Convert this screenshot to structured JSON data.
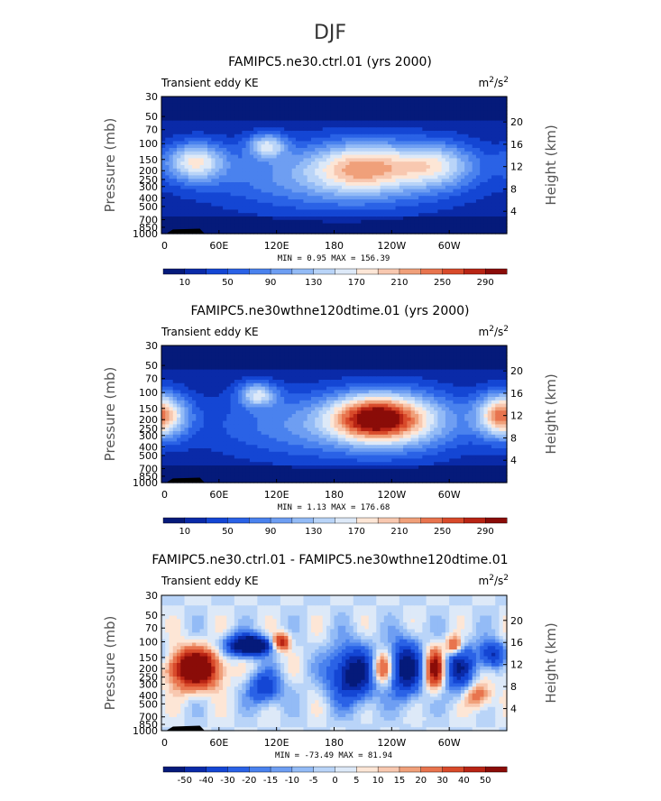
{
  "figure": {
    "title": "DJF"
  },
  "colors": {
    "blue_scale": [
      "#051a7a",
      "#0a2aa8",
      "#1446d4",
      "#2a62e6",
      "#4a82ee",
      "#6e9ef2",
      "#93bbf6",
      "#b9d4f8",
      "#dde9f8",
      "#fde6d6",
      "#f8c8b0",
      "#f0a07a",
      "#e8744e",
      "#d84a2a",
      "#b82414",
      "#8a0c08"
    ],
    "diff_scale": [
      "#051a7a",
      "#0a2aa8",
      "#1446d4",
      "#2a62e6",
      "#4a82ee",
      "#6e9ef2",
      "#93bbf6",
      "#b9d4f8",
      "#dde9f8",
      "#fde6d6",
      "#f8c8b0",
      "#f0a07a",
      "#e8744e",
      "#d84a2a",
      "#b82414",
      "#8a0c08"
    ]
  },
  "chart_data": [
    {
      "type": "heatmap",
      "title": "FAMIPC5.ne30.ctrl.01 (yrs 2000)",
      "left_label": "Transient eddy KE",
      "units_base": "m",
      "units_exp": "2",
      "units_den": "/s",
      "units_den_exp": "2",
      "ylabel": "Pressure (mb)",
      "ylabel_right": "Height (km)",
      "pressure_ticks": [
        "30",
        "50",
        "70",
        "100",
        "150",
        "200",
        "250",
        "300",
        "400",
        "500",
        "700",
        "850",
        "1000"
      ],
      "pressure_values": [
        30,
        50,
        70,
        100,
        150,
        200,
        250,
        300,
        400,
        500,
        700,
        850,
        1000
      ],
      "height_ticks": [
        "20",
        "16",
        "12",
        "8",
        "4"
      ],
      "height_values": [
        20,
        16,
        12,
        8,
        4
      ],
      "x_ticks": [
        "0",
        "60E",
        "120E",
        "180",
        "120W",
        "60W"
      ],
      "x_values": [
        0,
        60,
        120,
        180,
        240,
        300
      ],
      "xlim": [
        0,
        360
      ],
      "min_max": "MIN =    0.95  MAX =  156.39",
      "colorbar_labels": [
        "10",
        "50",
        "90",
        "130",
        "170",
        "210",
        "250",
        "290"
      ],
      "levels": [
        0,
        10,
        30,
        50,
        70,
        90,
        110,
        130,
        150,
        170,
        190,
        210,
        230,
        250,
        270,
        290
      ],
      "features": [
        {
          "lon": 35,
          "p": 160,
          "amp": 145,
          "wlon": 22,
          "wp": 0.35
        },
        {
          "lon": 110,
          "p": 105,
          "amp": 120,
          "wlon": 14,
          "wp": 0.22
        },
        {
          "lon": 210,
          "p": 180,
          "amp": 120,
          "wlon": 35,
          "wp": 0.45
        },
        {
          "lon": 285,
          "p": 170,
          "amp": 110,
          "wlon": 30,
          "wp": 0.4
        },
        {
          "lon": 180,
          "p": 250,
          "amp": 80,
          "wlon": 90,
          "wp": 0.6
        }
      ]
    },
    {
      "type": "heatmap",
      "title": "FAMIPC5.ne30wthne120dtime.01 (yrs 2000)",
      "left_label": "Transient eddy KE",
      "units_base": "m",
      "units_exp": "2",
      "units_den": "/s",
      "units_den_exp": "2",
      "ylabel": "Pressure (mb)",
      "ylabel_right": "Height (km)",
      "pressure_ticks": [
        "30",
        "50",
        "70",
        "100",
        "150",
        "200",
        "250",
        "300",
        "400",
        "500",
        "700",
        "850",
        "1000"
      ],
      "pressure_values": [
        30,
        50,
        70,
        100,
        150,
        200,
        250,
        300,
        400,
        500,
        700,
        850,
        1000
      ],
      "height_ticks": [
        "20",
        "16",
        "12",
        "8",
        "4"
      ],
      "height_values": [
        20,
        16,
        12,
        8,
        4
      ],
      "x_ticks": [
        "0",
        "60E",
        "120E",
        "180",
        "120W",
        "60W"
      ],
      "x_values": [
        0,
        60,
        120,
        180,
        240,
        300
      ],
      "xlim": [
        0,
        360
      ],
      "min_max": "MIN =    1.13  MAX =  176.68",
      "colorbar_labels": [
        "10",
        "50",
        "90",
        "130",
        "170",
        "210",
        "250",
        "290"
      ],
      "levels": [
        0,
        10,
        30,
        50,
        70,
        90,
        110,
        130,
        150,
        170,
        190,
        210,
        230,
        250,
        270,
        290
      ],
      "features": [
        {
          "lon": 100,
          "p": 105,
          "amp": 125,
          "wlon": 14,
          "wp": 0.22
        },
        {
          "lon": 220,
          "p": 190,
          "amp": 170,
          "wlon": 30,
          "wp": 0.4
        },
        {
          "lon": 0,
          "p": 180,
          "amp": 110,
          "wlon": 20,
          "wp": 0.4
        },
        {
          "lon": 355,
          "p": 180,
          "amp": 110,
          "wlon": 18,
          "wp": 0.4
        },
        {
          "lon": 250,
          "p": 200,
          "amp": 100,
          "wlon": 40,
          "wp": 0.5
        },
        {
          "lon": 180,
          "p": 250,
          "amp": 70,
          "wlon": 90,
          "wp": 0.6
        }
      ]
    },
    {
      "type": "heatmap",
      "title": "FAMIPC5.ne30.ctrl.01 - FAMIPC5.ne30wthne120dtime.01",
      "left_label": "Transient eddy KE",
      "units_base": "m",
      "units_exp": "2",
      "units_den": "/s",
      "units_den_exp": "2",
      "ylabel": "Pressure (mb)",
      "ylabel_right": "Height (km)",
      "pressure_ticks": [
        "30",
        "50",
        "70",
        "100",
        "150",
        "200",
        "250",
        "300",
        "400",
        "500",
        "700",
        "850",
        "1000"
      ],
      "pressure_values": [
        30,
        50,
        70,
        100,
        150,
        200,
        250,
        300,
        400,
        500,
        700,
        850,
        1000
      ],
      "height_ticks": [
        "20",
        "16",
        "12",
        "8",
        "4"
      ],
      "height_values": [
        20,
        16,
        12,
        8,
        4
      ],
      "x_ticks": [
        "0",
        "60E",
        "120E",
        "180",
        "120W",
        "60W"
      ],
      "x_values": [
        0,
        60,
        120,
        180,
        240,
        300
      ],
      "xlim": [
        0,
        360
      ],
      "min_max": "MIN =  -73.49  MAX =   81.94",
      "colorbar_labels": [
        "-50",
        "-40",
        "-30",
        "-20",
        "-15",
        "-10",
        "-5",
        "0",
        "5",
        "10",
        "15",
        "20",
        "30",
        "40",
        "50"
      ],
      "levels": [
        -1000,
        -50,
        -40,
        -30,
        -20,
        -15,
        -10,
        -5,
        0,
        5,
        10,
        15,
        20,
        30,
        40,
        50
      ],
      "features": [
        {
          "lon": 35,
          "p": 200,
          "amp": 80,
          "wlon": 18,
          "wp": 0.35
        },
        {
          "lon": 85,
          "p": 110,
          "amp": -60,
          "wlon": 14,
          "wp": 0.2
        },
        {
          "lon": 100,
          "p": 110,
          "amp": -55,
          "wlon": 10,
          "wp": 0.15
        },
        {
          "lon": 108,
          "p": 330,
          "amp": -40,
          "wlon": 12,
          "wp": 0.3
        },
        {
          "lon": 200,
          "p": 230,
          "amp": -60,
          "wlon": 18,
          "wp": 0.5
        },
        {
          "lon": 230,
          "p": 200,
          "amp": 45,
          "wlon": 8,
          "wp": 0.3
        },
        {
          "lon": 255,
          "p": 200,
          "amp": -60,
          "wlon": 12,
          "wp": 0.5
        },
        {
          "lon": 285,
          "p": 200,
          "amp": 60,
          "wlon": 7,
          "wp": 0.35
        },
        {
          "lon": 310,
          "p": 200,
          "amp": -45,
          "wlon": 12,
          "wp": 0.45
        },
        {
          "lon": 345,
          "p": 140,
          "amp": -45,
          "wlon": 10,
          "wp": 0.25
        },
        {
          "lon": 305,
          "p": 110,
          "amp": 45,
          "wlon": 6,
          "wp": 0.18
        },
        {
          "lon": 125,
          "p": 100,
          "amp": 50,
          "wlon": 6,
          "wp": 0.15
        },
        {
          "lon": 330,
          "p": 400,
          "amp": 30,
          "wlon": 10,
          "wp": 0.25
        }
      ]
    }
  ]
}
